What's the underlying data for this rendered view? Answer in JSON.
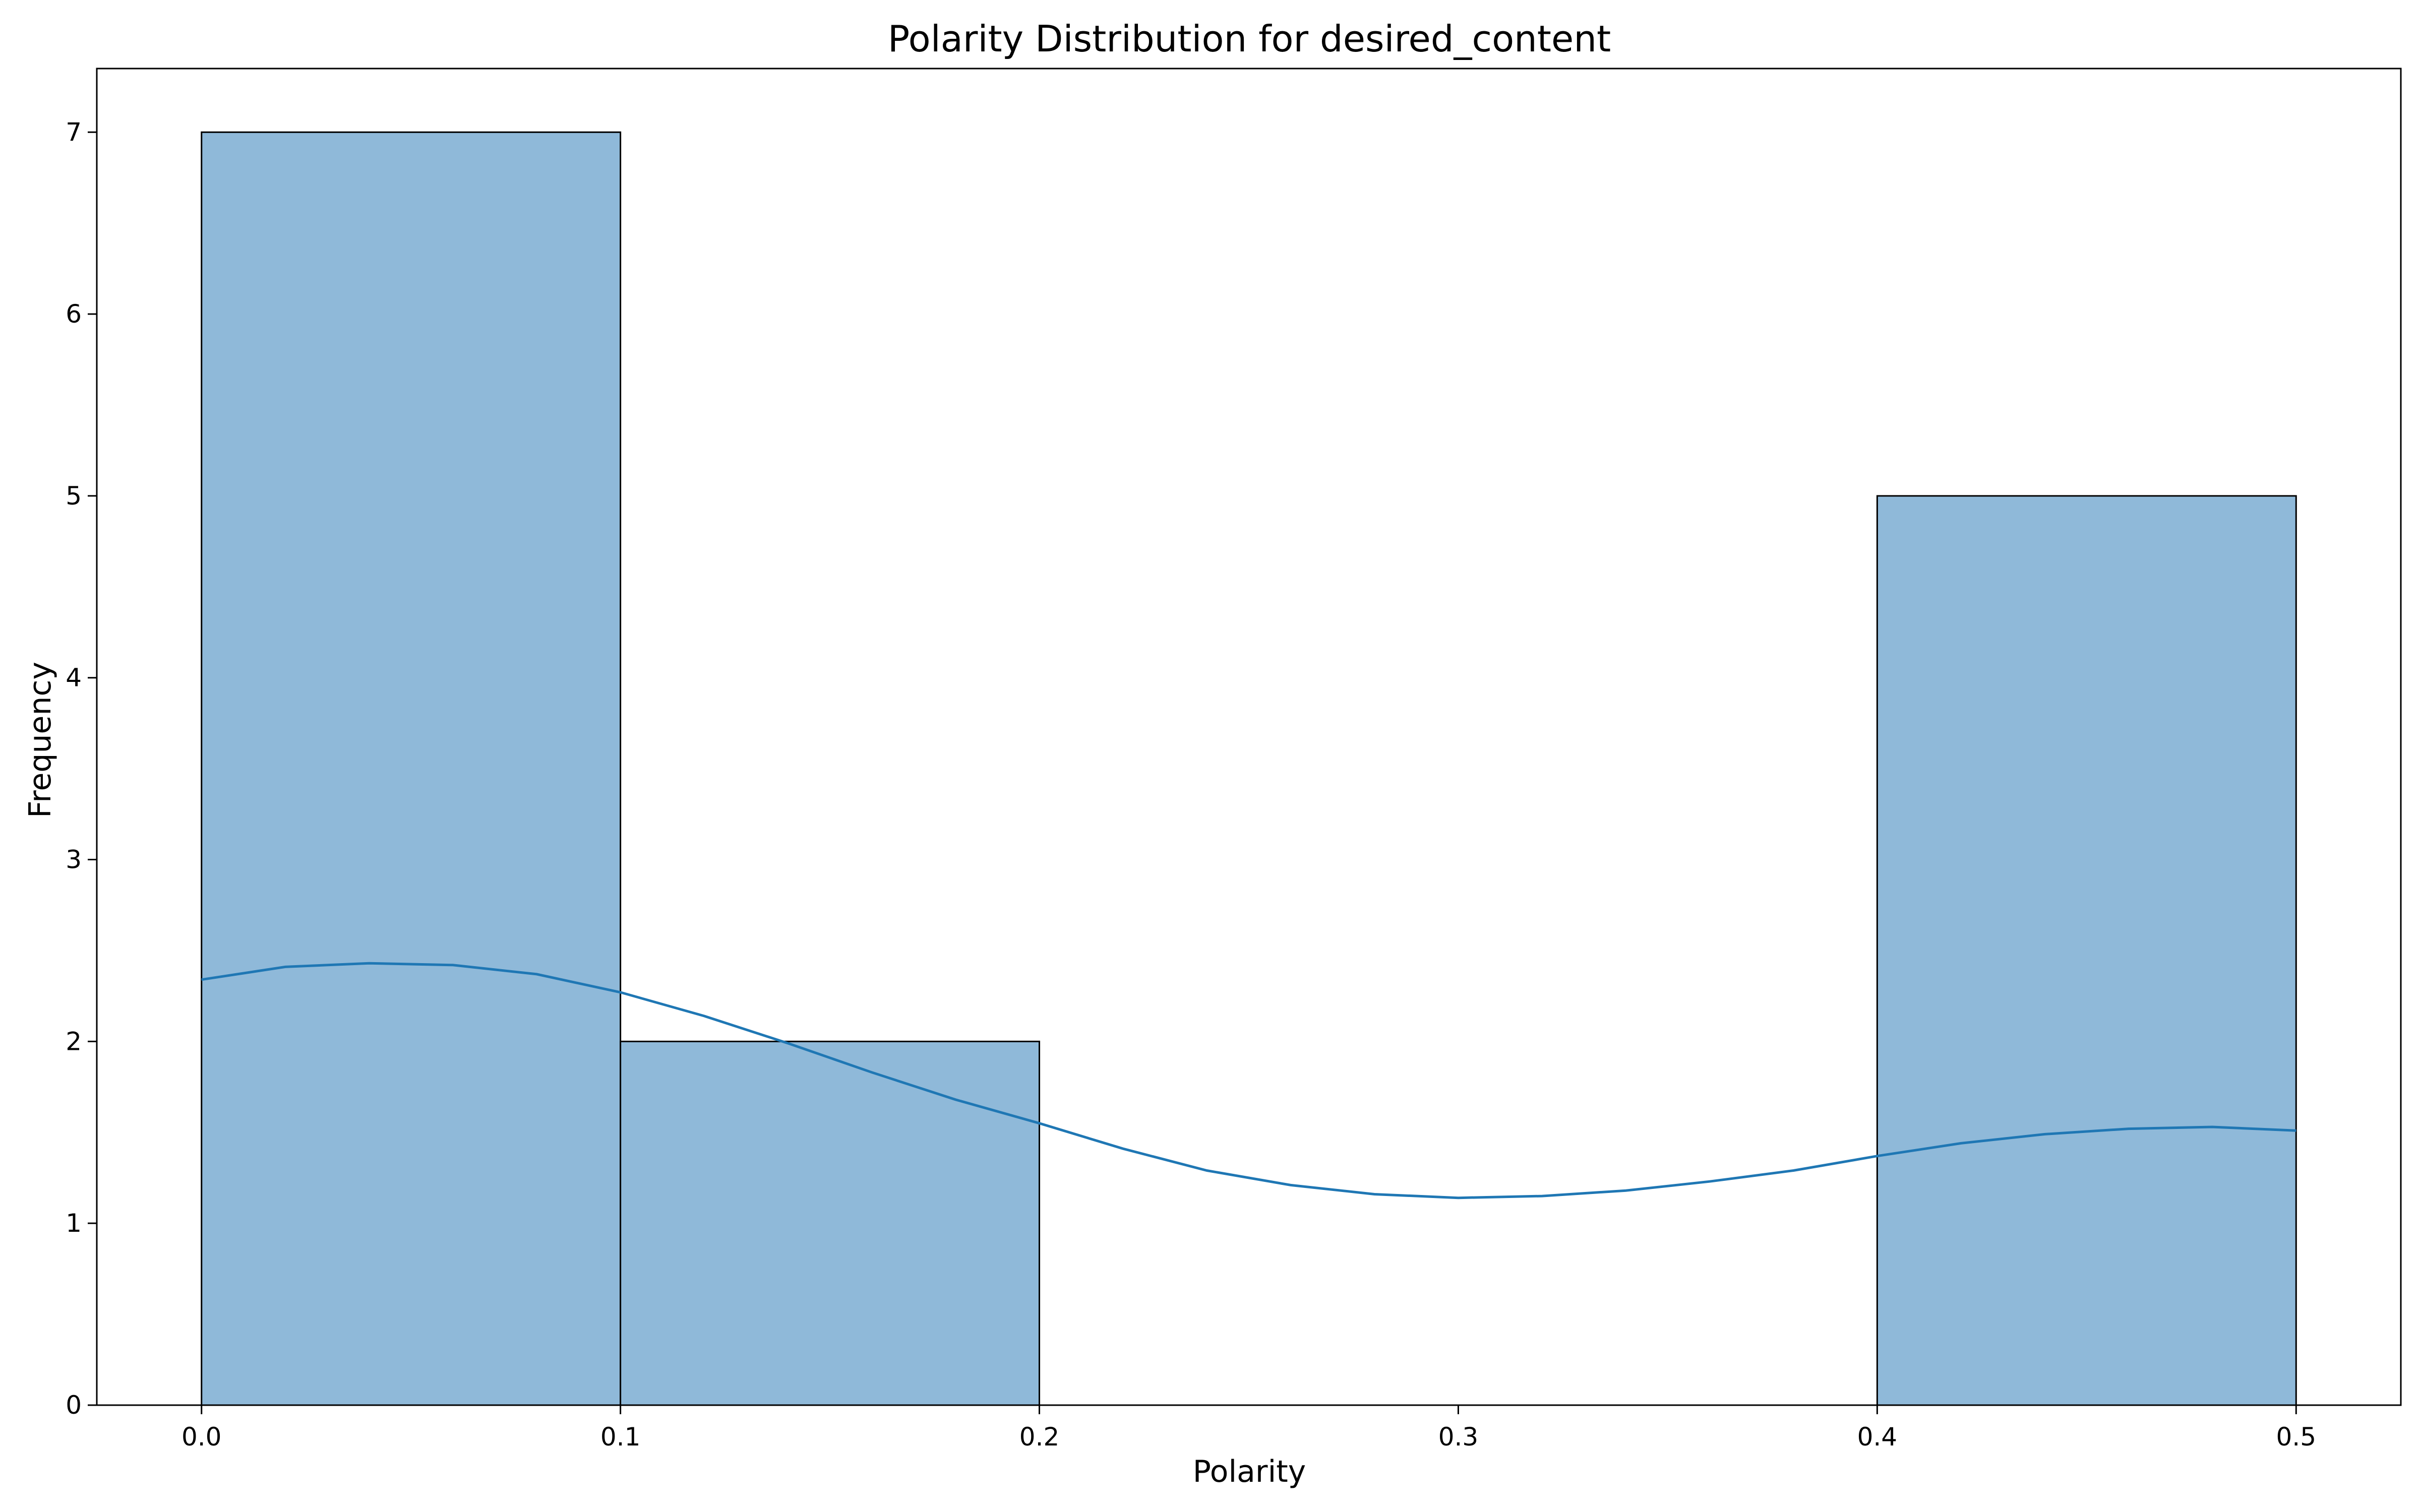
{
  "chart_data": {
    "type": "bar",
    "title": "Polarity Distribution for desired_content",
    "xlabel": "Polarity",
    "ylabel": "Frequency",
    "xlim": [
      -0.025,
      0.525
    ],
    "ylim": [
      0,
      7.35
    ],
    "xticks": [
      "0.0",
      "0.1",
      "0.2",
      "0.3",
      "0.4",
      "0.5"
    ],
    "xtick_values": [
      0.0,
      0.1,
      0.2,
      0.3,
      0.4,
      0.5
    ],
    "yticks": [
      "0",
      "1",
      "2",
      "3",
      "4",
      "5",
      "6",
      "7"
    ],
    "ytick_values": [
      0,
      1,
      2,
      3,
      4,
      5,
      6,
      7
    ],
    "bins": [
      {
        "x0": 0.0,
        "x1": 0.1,
        "count": 7
      },
      {
        "x0": 0.1,
        "x1": 0.2,
        "count": 2
      },
      {
        "x0": 0.2,
        "x1": 0.3,
        "count": 0
      },
      {
        "x0": 0.3,
        "x1": 0.4,
        "count": 0
      },
      {
        "x0": 0.4,
        "x1": 0.5,
        "count": 5
      }
    ],
    "kde": {
      "x": [
        0.0,
        0.02,
        0.04,
        0.06,
        0.08,
        0.1,
        0.12,
        0.14,
        0.16,
        0.18,
        0.2,
        0.22,
        0.24,
        0.26,
        0.28,
        0.3,
        0.32,
        0.34,
        0.36,
        0.38,
        0.4,
        0.42,
        0.44,
        0.46,
        0.48,
        0.5
      ],
      "y": [
        2.34,
        2.41,
        2.43,
        2.42,
        2.37,
        2.27,
        2.14,
        1.99,
        1.83,
        1.68,
        1.55,
        1.41,
        1.29,
        1.21,
        1.16,
        1.14,
        1.15,
        1.18,
        1.23,
        1.29,
        1.37,
        1.44,
        1.49,
        1.52,
        1.53,
        1.51
      ]
    },
    "grid": false,
    "legend": "none",
    "colors": {
      "bar_fill": "#8fb9d9",
      "bar_edge": "#000000",
      "kde_line": "#1f77b4"
    }
  }
}
